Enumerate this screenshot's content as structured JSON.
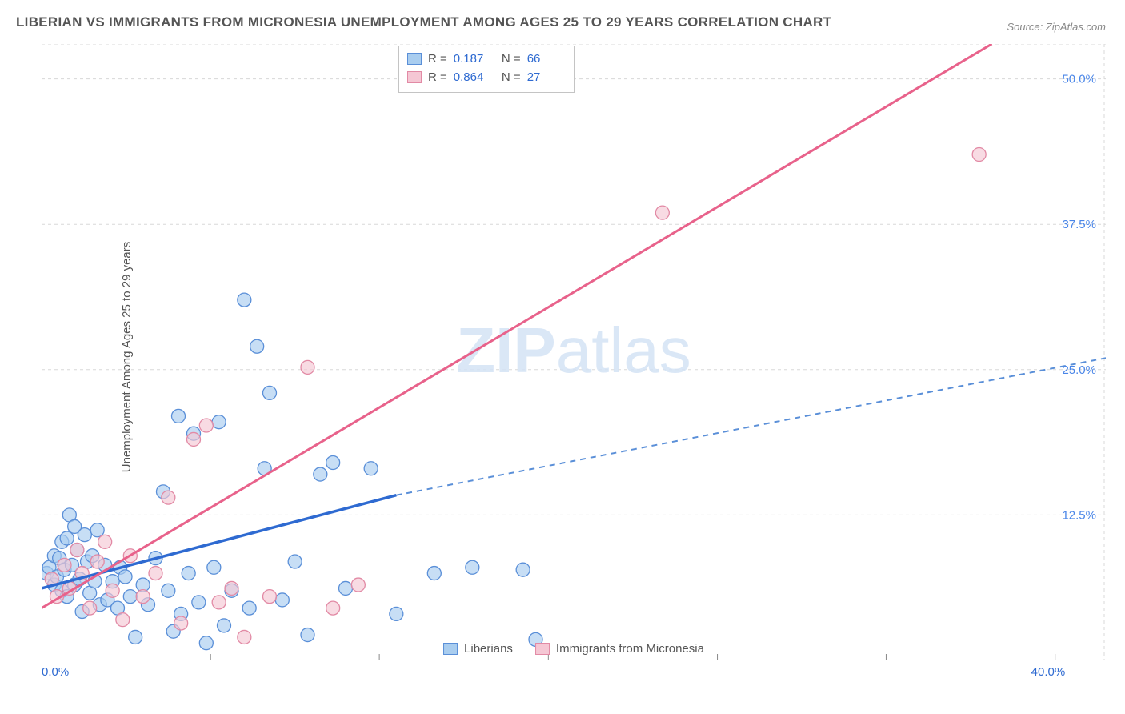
{
  "title": "LIBERIAN VS IMMIGRANTS FROM MICRONESIA UNEMPLOYMENT AMONG AGES 25 TO 29 YEARS CORRELATION CHART",
  "source": "Source: ZipAtlas.com",
  "ylabel": "Unemployment Among Ages 25 to 29 years",
  "watermark_zip": "ZIP",
  "watermark_atlas": "atlas",
  "chart": {
    "type": "scatter",
    "xlim": [
      0,
      42
    ],
    "ylim": [
      0,
      53
    ],
    "xticks": [
      {
        "v": 0,
        "label": "0.0%"
      },
      {
        "v": 40,
        "label": "40.0%"
      }
    ],
    "xticks_minor": [
      6.67,
      13.33,
      20,
      26.67,
      33.33
    ],
    "yticks": [
      {
        "v": 12.5,
        "label": "12.5%"
      },
      {
        "v": 25.0,
        "label": "25.0%"
      },
      {
        "v": 37.5,
        "label": "37.5%"
      },
      {
        "v": 50.0,
        "label": "50.0%"
      }
    ],
    "grid_at_y": [
      12.5,
      25.0,
      37.5,
      50.0,
      53
    ],
    "background_color": "#ffffff",
    "grid_color": "#d8d8d8",
    "series": {
      "blue": {
        "name": "Liberians",
        "color_fill": "#a9cdef",
        "color_stroke": "#5a8fd8",
        "r_label": "0.187",
        "n_label": "66",
        "marker_radius": 8.5,
        "trend": {
          "x1": 0,
          "y1": 6.2,
          "x2": 14,
          "y2": 14.2,
          "dash_to_x": 42,
          "dash_to_y": 26.0
        },
        "points": [
          [
            0.2,
            7.5
          ],
          [
            0.3,
            8.0
          ],
          [
            0.5,
            6.5
          ],
          [
            0.5,
            9.0
          ],
          [
            0.6,
            7.2
          ],
          [
            0.7,
            8.8
          ],
          [
            0.8,
            6.0
          ],
          [
            0.8,
            10.2
          ],
          [
            0.9,
            7.8
          ],
          [
            1.0,
            5.5
          ],
          [
            1.0,
            10.5
          ],
          [
            1.1,
            12.5
          ],
          [
            1.2,
            8.2
          ],
          [
            1.3,
            6.5
          ],
          [
            1.3,
            11.5
          ],
          [
            1.4,
            9.5
          ],
          [
            1.5,
            7.0
          ],
          [
            1.6,
            4.2
          ],
          [
            1.7,
            10.8
          ],
          [
            1.8,
            8.5
          ],
          [
            1.9,
            5.8
          ],
          [
            2.0,
            9.0
          ],
          [
            2.1,
            6.8
          ],
          [
            2.2,
            11.2
          ],
          [
            2.3,
            4.8
          ],
          [
            2.5,
            8.2
          ],
          [
            2.6,
            5.2
          ],
          [
            2.8,
            6.8
          ],
          [
            3.0,
            4.5
          ],
          [
            3.1,
            8.0
          ],
          [
            3.3,
            7.2
          ],
          [
            3.5,
            5.5
          ],
          [
            3.7,
            2.0
          ],
          [
            4.0,
            6.5
          ],
          [
            4.2,
            4.8
          ],
          [
            4.5,
            8.8
          ],
          [
            4.8,
            14.5
          ],
          [
            5.0,
            6.0
          ],
          [
            5.2,
            2.5
          ],
          [
            5.4,
            21.0
          ],
          [
            5.5,
            4.0
          ],
          [
            5.8,
            7.5
          ],
          [
            6.0,
            19.5
          ],
          [
            6.2,
            5.0
          ],
          [
            6.5,
            1.5
          ],
          [
            6.8,
            8.0
          ],
          [
            7.0,
            20.5
          ],
          [
            7.2,
            3.0
          ],
          [
            7.5,
            6.0
          ],
          [
            8.0,
            31.0
          ],
          [
            8.2,
            4.5
          ],
          [
            8.5,
            27.0
          ],
          [
            8.8,
            16.5
          ],
          [
            9.0,
            23.0
          ],
          [
            9.5,
            5.2
          ],
          [
            10.0,
            8.5
          ],
          [
            10.5,
            2.2
          ],
          [
            11.0,
            16.0
          ],
          [
            11.5,
            17.0
          ],
          [
            12.0,
            6.2
          ],
          [
            13.0,
            16.5
          ],
          [
            14.0,
            4.0
          ],
          [
            15.5,
            7.5
          ],
          [
            17.0,
            8.0
          ],
          [
            19.0,
            7.8
          ],
          [
            19.5,
            1.8
          ]
        ]
      },
      "pink": {
        "name": "Immigrants from Micronesia",
        "color_fill": "#f5c7d4",
        "color_stroke": "#e28aa5",
        "r_label": "0.864",
        "n_label": "27",
        "marker_radius": 8.5,
        "trend": {
          "x1": 0,
          "y1": 4.5,
          "x2": 37.5,
          "y2": 53
        },
        "points": [
          [
            0.4,
            7.0
          ],
          [
            0.6,
            5.5
          ],
          [
            0.9,
            8.2
          ],
          [
            1.1,
            6.2
          ],
          [
            1.4,
            9.5
          ],
          [
            1.6,
            7.5
          ],
          [
            1.9,
            4.5
          ],
          [
            2.2,
            8.5
          ],
          [
            2.5,
            10.2
          ],
          [
            2.8,
            6.0
          ],
          [
            3.2,
            3.5
          ],
          [
            3.5,
            9.0
          ],
          [
            4.0,
            5.5
          ],
          [
            4.5,
            7.5
          ],
          [
            5.0,
            14.0
          ],
          [
            5.5,
            3.2
          ],
          [
            6.0,
            19.0
          ],
          [
            6.5,
            20.2
          ],
          [
            7.0,
            5.0
          ],
          [
            7.5,
            6.2
          ],
          [
            8.0,
            2.0
          ],
          [
            9.0,
            5.5
          ],
          [
            10.5,
            25.2
          ],
          [
            11.5,
            4.5
          ],
          [
            12.5,
            6.5
          ],
          [
            24.5,
            38.5
          ],
          [
            37.0,
            43.5
          ]
        ]
      }
    }
  },
  "legend_bottom": [
    {
      "swatch": "blue",
      "label": "Liberians"
    },
    {
      "swatch": "pink",
      "label": "Immigrants from Micronesia"
    }
  ]
}
